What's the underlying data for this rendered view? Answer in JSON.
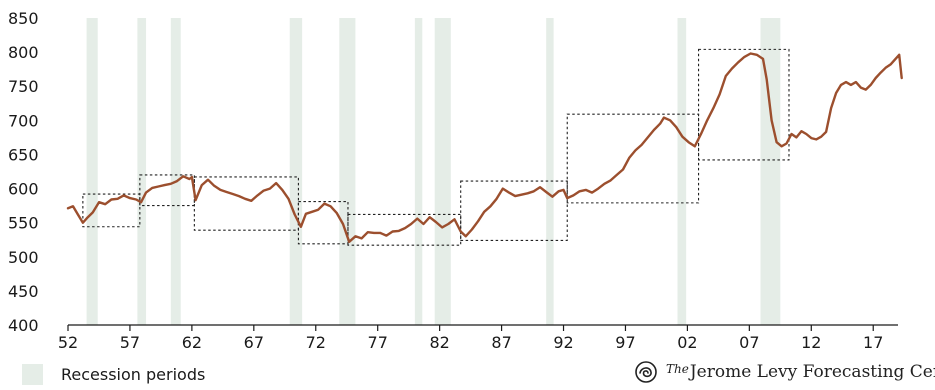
{
  "chart_data": {
    "type": "line",
    "title": "",
    "xlabel": "",
    "ylabel": "",
    "xlim": [
      1952,
      2019
    ],
    "ylim": [
      400,
      850
    ],
    "x_tick_labels": [
      "52",
      "57",
      "62",
      "67",
      "72",
      "77",
      "82",
      "87",
      "92",
      "97",
      "02",
      "07",
      "12",
      "17"
    ],
    "x_tick_values": [
      1952,
      1957,
      1962,
      1967,
      1972,
      1977,
      1982,
      1987,
      1992,
      1997,
      2002,
      2007,
      2012,
      2017
    ],
    "y_ticks": [
      400,
      450,
      500,
      550,
      600,
      650,
      700,
      750,
      800,
      850
    ],
    "recession_periods": [
      [
        1953.5,
        1954.4
      ],
      [
        1957.6,
        1958.3
      ],
      [
        1960.3,
        1961.1
      ],
      [
        1969.9,
        1970.9
      ],
      [
        1973.9,
        1975.2
      ],
      [
        1980.0,
        1980.6
      ],
      [
        1981.6,
        1982.9
      ],
      [
        1990.6,
        1991.2
      ],
      [
        2001.2,
        2001.9
      ],
      [
        2007.9,
        2009.5
      ]
    ],
    "boxes": [
      {
        "x": [
          1953.2,
          1957.8
        ],
        "y": [
          544,
          592
        ]
      },
      {
        "x": [
          1957.8,
          1962.2
        ],
        "y": [
          575,
          620
        ]
      },
      {
        "x": [
          1962.2,
          1970.6
        ],
        "y": [
          539,
          617
        ]
      },
      {
        "x": [
          1970.6,
          1974.6
        ],
        "y": [
          519,
          581
        ]
      },
      {
        "x": [
          1974.6,
          1983.7
        ],
        "y": [
          517,
          562
        ]
      },
      {
        "x": [
          1983.7,
          1992.3
        ],
        "y": [
          524,
          611
        ]
      },
      {
        "x": [
          1992.3,
          2002.9
        ],
        "y": [
          579,
          709
        ]
      },
      {
        "x": [
          2002.9,
          2010.2
        ],
        "y": [
          642,
          804
        ]
      }
    ],
    "series": [
      {
        "color": "#9c4f2e",
        "points": [
          [
            1952.0,
            571
          ],
          [
            1952.4,
            574
          ],
          [
            1952.8,
            562
          ],
          [
            1953.2,
            550
          ],
          [
            1953.6,
            558
          ],
          [
            1954.0,
            565
          ],
          [
            1954.5,
            580
          ],
          [
            1955.0,
            577
          ],
          [
            1955.5,
            584
          ],
          [
            1956.0,
            585
          ],
          [
            1956.5,
            590
          ],
          [
            1957.0,
            586
          ],
          [
            1957.5,
            584
          ],
          [
            1957.9,
            580
          ],
          [
            1958.3,
            594
          ],
          [
            1958.8,
            601
          ],
          [
            1959.3,
            603
          ],
          [
            1959.8,
            605
          ],
          [
            1960.3,
            607
          ],
          [
            1960.8,
            611
          ],
          [
            1961.3,
            618
          ],
          [
            1961.8,
            614
          ],
          [
            1962.0,
            617
          ],
          [
            1962.3,
            583
          ],
          [
            1962.8,
            605
          ],
          [
            1963.3,
            613
          ],
          [
            1963.8,
            604
          ],
          [
            1964.3,
            598
          ],
          [
            1964.8,
            595
          ],
          [
            1965.3,
            592
          ],
          [
            1965.8,
            589
          ],
          [
            1966.3,
            585
          ],
          [
            1966.8,
            582
          ],
          [
            1967.3,
            590
          ],
          [
            1967.8,
            597
          ],
          [
            1968.3,
            600
          ],
          [
            1968.8,
            608
          ],
          [
            1969.3,
            598
          ],
          [
            1969.8,
            585
          ],
          [
            1970.3,
            562
          ],
          [
            1970.8,
            544
          ],
          [
            1971.2,
            563
          ],
          [
            1971.7,
            566
          ],
          [
            1972.2,
            569
          ],
          [
            1972.7,
            578
          ],
          [
            1973.2,
            574
          ],
          [
            1973.7,
            564
          ],
          [
            1974.2,
            548
          ],
          [
            1974.7,
            522
          ],
          [
            1975.2,
            530
          ],
          [
            1975.7,
            527
          ],
          [
            1976.2,
            536
          ],
          [
            1976.7,
            535
          ],
          [
            1977.2,
            535
          ],
          [
            1977.7,
            531
          ],
          [
            1978.2,
            537
          ],
          [
            1978.7,
            538
          ],
          [
            1979.2,
            542
          ],
          [
            1979.7,
            548
          ],
          [
            1980.2,
            556
          ],
          [
            1980.7,
            548
          ],
          [
            1981.2,
            558
          ],
          [
            1981.7,
            551
          ],
          [
            1982.2,
            543
          ],
          [
            1982.7,
            548
          ],
          [
            1983.2,
            555
          ],
          [
            1983.7,
            537
          ],
          [
            1984.1,
            530
          ],
          [
            1984.6,
            540
          ],
          [
            1985.1,
            552
          ],
          [
            1985.6,
            566
          ],
          [
            1986.1,
            574
          ],
          [
            1986.6,
            585
          ],
          [
            1987.1,
            600
          ],
          [
            1987.6,
            594
          ],
          [
            1988.1,
            589
          ],
          [
            1988.6,
            591
          ],
          [
            1989.1,
            593
          ],
          [
            1989.6,
            596
          ],
          [
            1990.1,
            602
          ],
          [
            1990.6,
            595
          ],
          [
            1991.1,
            588
          ],
          [
            1991.6,
            596
          ],
          [
            1992.0,
            598
          ],
          [
            1992.3,
            586
          ],
          [
            1992.8,
            590
          ],
          [
            1993.3,
            596
          ],
          [
            1993.8,
            598
          ],
          [
            1994.3,
            594
          ],
          [
            1994.8,
            600
          ],
          [
            1995.3,
            607
          ],
          [
            1995.8,
            612
          ],
          [
            1996.3,
            620
          ],
          [
            1996.8,
            628
          ],
          [
            1997.3,
            645
          ],
          [
            1997.8,
            656
          ],
          [
            1998.3,
            664
          ],
          [
            1998.8,
            675
          ],
          [
            1999.3,
            686
          ],
          [
            1999.8,
            695
          ],
          [
            2000.1,
            704
          ],
          [
            2000.6,
            700
          ],
          [
            2001.1,
            690
          ],
          [
            2001.6,
            676
          ],
          [
            2002.1,
            668
          ],
          [
            2002.6,
            662
          ],
          [
            2003.1,
            680
          ],
          [
            2003.6,
            700
          ],
          [
            2004.1,
            718
          ],
          [
            2004.6,
            738
          ],
          [
            2005.1,
            765
          ],
          [
            2005.6,
            776
          ],
          [
            2006.1,
            785
          ],
          [
            2006.6,
            793
          ],
          [
            2007.1,
            798
          ],
          [
            2007.6,
            796
          ],
          [
            2008.1,
            790
          ],
          [
            2008.4,
            760
          ],
          [
            2008.8,
            700
          ],
          [
            2009.2,
            668
          ],
          [
            2009.6,
            662
          ],
          [
            2010.0,
            666
          ],
          [
            2010.4,
            680
          ],
          [
            2010.8,
            675
          ],
          [
            2011.2,
            684
          ],
          [
            2011.6,
            680
          ],
          [
            2012.0,
            674
          ],
          [
            2012.4,
            672
          ],
          [
            2012.8,
            676
          ],
          [
            2013.2,
            683
          ],
          [
            2013.6,
            718
          ],
          [
            2014.0,
            740
          ],
          [
            2014.4,
            752
          ],
          [
            2014.8,
            756
          ],
          [
            2015.2,
            752
          ],
          [
            2015.6,
            756
          ],
          [
            2016.0,
            748
          ],
          [
            2016.4,
            745
          ],
          [
            2016.8,
            752
          ],
          [
            2017.2,
            762
          ],
          [
            2017.6,
            770
          ],
          [
            2018.0,
            777
          ],
          [
            2018.4,
            782
          ],
          [
            2018.8,
            790
          ],
          [
            2019.1,
            796
          ],
          [
            2019.3,
            762
          ]
        ]
      }
    ],
    "grid": false
  },
  "colors": {
    "line": "#9c4f2e",
    "recession_band": "#e5ede7",
    "box_border": "#222222",
    "axis": "#1a1a1a"
  },
  "legend": {
    "label": "Recession periods",
    "position": "bottom-left"
  },
  "branding": {
    "the": "The",
    "name": "Jerome Levy Forecasting Center",
    "logo_icon": "levy-spiral-logo"
  }
}
